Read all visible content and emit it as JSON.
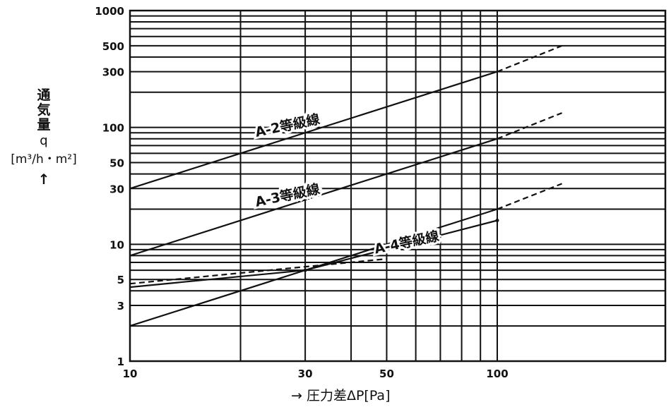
{
  "chart_data": {
    "type": "line",
    "x_scale": "log",
    "y_scale": "log",
    "xlim": [
      10,
      150
    ],
    "ylim": [
      1,
      1000
    ],
    "x_ticks": [
      10,
      20,
      30,
      40,
      50,
      60,
      70,
      80,
      90,
      100
    ],
    "x_tick_labels": [
      {
        "value": 10,
        "label": "10"
      },
      {
        "value": 30,
        "label": "30"
      },
      {
        "value": 50,
        "label": "50"
      },
      {
        "value": 100,
        "label": "100"
      }
    ],
    "y_tick_labels": [
      {
        "value": 1000,
        "label": "1000"
      },
      {
        "value": 500,
        "label": "500"
      },
      {
        "value": 300,
        "label": "300"
      },
      {
        "value": 100,
        "label": "100"
      },
      {
        "value": 50,
        "label": "50"
      },
      {
        "value": 30,
        "label": "30"
      },
      {
        "value": 10,
        "label": "10"
      },
      {
        "value": 5,
        "label": "5"
      },
      {
        "value": 3,
        "label": "3"
      },
      {
        "value": 1,
        "label": "1"
      }
    ],
    "y_gridlines": [
      1,
      2,
      3,
      4,
      5,
      6,
      7,
      8,
      9,
      10,
      20,
      30,
      40,
      50,
      60,
      70,
      80,
      90,
      100,
      200,
      300,
      400,
      500,
      600,
      700,
      800,
      900,
      1000
    ],
    "grid": true,
    "xlabel": "→ 圧力差ΔP[Pa]",
    "ylabel": {
      "chars": [
        "通",
        "気",
        "量"
      ],
      "symbol": "q",
      "unit": "[m³/h・m²]",
      "arrow": "↑"
    },
    "series": [
      {
        "name": "A-2等級線",
        "style": "solid",
        "x": [
          10,
          100
        ],
        "y": [
          30,
          300
        ]
      },
      {
        "name": "",
        "style": "dashed",
        "x": [
          100,
          150
        ],
        "y": [
          300,
          500
        ]
      },
      {
        "name": "A-3等級線",
        "style": "solid",
        "x": [
          10,
          100
        ],
        "y": [
          8,
          80
        ]
      },
      {
        "name": "",
        "style": "dashed",
        "x": [
          100,
          150
        ],
        "y": [
          80,
          133
        ]
      },
      {
        "name": "A-4等級線",
        "style": "solid",
        "x": [
          10,
          100
        ],
        "y": [
          2,
          20
        ]
      },
      {
        "name": "",
        "style": "dashed",
        "x": [
          100,
          150
        ],
        "y": [
          20,
          33
        ]
      },
      {
        "name": "",
        "style": "solid",
        "x": [
          10,
          30,
          100
        ],
        "y": [
          4.3,
          6,
          16
        ]
      },
      {
        "name": "",
        "style": "dashed",
        "x": [
          10,
          50
        ],
        "y": [
          4.6,
          7.5
        ]
      }
    ],
    "annotations": [
      {
        "text": "A-2等級線",
        "x": 27,
        "y": 95,
        "angle": -12
      },
      {
        "text": "A-3等級線",
        "x": 27,
        "y": 24,
        "angle": -12
      },
      {
        "text": "A-4等級線",
        "x": 57,
        "y": 9.5,
        "angle": -12
      }
    ]
  }
}
